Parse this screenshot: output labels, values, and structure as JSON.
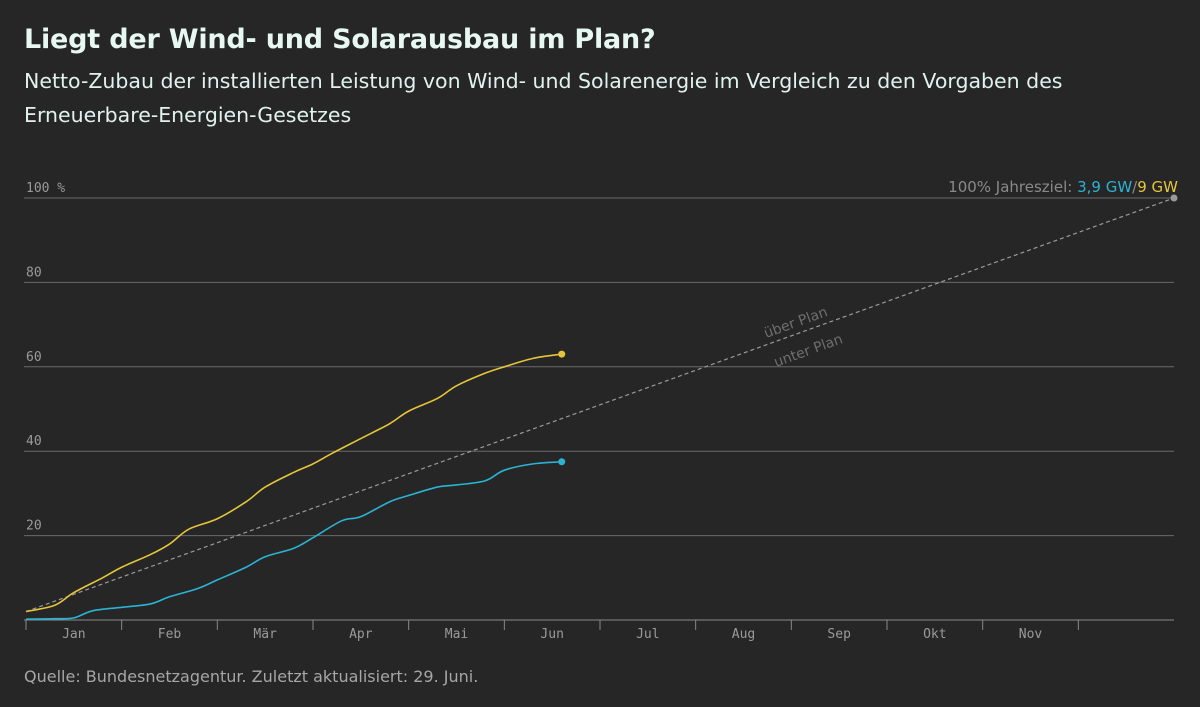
{
  "title": "Liegt der Wind- und Solarausbau im Plan?",
  "subtitle": "Netto-Zubau der installierten Leistung von Wind- und Solarenergie im Vergleich zu den Vorgaben des Erneuerbare-Energien-Gesetzes",
  "source": "Quelle: Bundesnetzagentur. Zuletzt aktualisiert: 29. Juni.",
  "goal_label": {
    "prefix": "100% Jahresziel: ",
    "wind": "3,9 GW",
    "sep": "/",
    "solar": "9 GW"
  },
  "zone_labels": {
    "above": "über Plan",
    "below": "unter Plan"
  },
  "colors": {
    "wind": "#2bb3d3",
    "solar": "#e5c53a",
    "grid": "#6a6a6a",
    "plan": "#9a9a9a",
    "goal_text": "#8a8a8a"
  },
  "chart_data": {
    "type": "line",
    "title": "Liegt der Wind- und Solarausbau im Plan?",
    "ylim": [
      0,
      100
    ],
    "yticks": [
      20,
      40,
      60,
      80,
      100
    ],
    "ytick_labels": [
      "20",
      "40",
      "60",
      "80",
      "100 %"
    ],
    "xlim": [
      0,
      12
    ],
    "xticks": [
      "Jan",
      "Feb",
      "Mär",
      "Apr",
      "Mai",
      "Jun",
      "Jul",
      "Aug",
      "Sep",
      "Okt",
      "Nov"
    ],
    "grid": true,
    "series": [
      {
        "key": "solar",
        "values_x": [
          0,
          0.3,
          0.5,
          0.8,
          1.0,
          1.3,
          1.5,
          1.7,
          2.0,
          2.3,
          2.5,
          2.8,
          3.0,
          3.2,
          3.5,
          3.8,
          4.0,
          4.3,
          4.5,
          4.8,
          5.0,
          5.3,
          5.6
        ],
        "values_y": [
          2,
          3.5,
          6.5,
          10,
          12.5,
          15.5,
          18,
          21.5,
          24,
          28,
          31.5,
          35,
          37,
          39.5,
          43,
          46.5,
          49.5,
          52.5,
          55.5,
          58.5,
          60,
          62,
          63
        ]
      },
      {
        "key": "wind",
        "values_x": [
          0,
          0.3,
          0.5,
          0.7,
          1.0,
          1.3,
          1.5,
          1.8,
          2.0,
          2.3,
          2.5,
          2.8,
          3.0,
          3.3,
          3.5,
          3.8,
          4.0,
          4.3,
          4.5,
          4.8,
          5.0,
          5.3,
          5.6
        ],
        "values_y": [
          0.2,
          0.3,
          0.5,
          2.2,
          3,
          3.8,
          5.5,
          7.5,
          9.5,
          12.5,
          15,
          17,
          19.5,
          23.5,
          24.5,
          28,
          29.5,
          31.5,
          32,
          33,
          35.5,
          37,
          37.5
        ]
      },
      {
        "key": "plan",
        "values_x": [
          0,
          12
        ],
        "values_y": [
          2,
          100
        ]
      }
    ]
  }
}
